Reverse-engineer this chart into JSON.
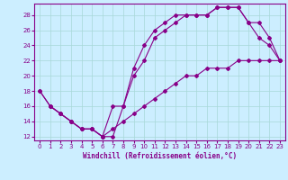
{
  "xlabel": "Windchill (Refroidissement éolien,°C)",
  "bg_color": "#cceeff",
  "line_color": "#880088",
  "xlim": [
    -0.5,
    23.5
  ],
  "ylim": [
    11.5,
    29.5
  ],
  "yticks": [
    12,
    14,
    16,
    18,
    20,
    22,
    24,
    26,
    28
  ],
  "xticks": [
    0,
    1,
    2,
    3,
    4,
    5,
    6,
    7,
    8,
    9,
    10,
    11,
    12,
    13,
    14,
    15,
    16,
    17,
    18,
    19,
    20,
    21,
    22,
    23
  ],
  "series1_x": [
    0,
    1,
    2,
    3,
    4,
    5,
    6,
    7,
    8,
    9,
    10,
    11,
    12,
    13,
    14,
    15,
    16,
    17,
    18,
    19,
    20,
    21,
    22,
    23
  ],
  "series1_y": [
    18,
    16,
    15,
    14,
    13,
    13,
    12,
    12,
    16,
    20,
    22,
    25,
    26,
    27,
    28,
    28,
    28,
    29,
    29,
    29,
    27,
    25,
    24,
    22
  ],
  "series2_x": [
    1,
    2,
    3,
    4,
    5,
    6,
    7,
    8,
    9,
    10,
    11,
    12,
    13,
    14,
    15,
    16,
    17,
    18,
    19,
    20,
    21,
    22,
    23
  ],
  "series2_y": [
    16,
    15,
    14,
    13,
    13,
    12,
    16,
    16,
    21,
    24,
    26,
    27,
    28,
    28,
    28,
    28,
    29,
    29,
    29,
    27,
    27,
    25,
    22
  ],
  "series3_x": [
    0,
    1,
    2,
    3,
    4,
    5,
    6,
    7,
    8,
    9,
    10,
    11,
    12,
    13,
    14,
    15,
    16,
    17,
    18,
    19,
    20,
    21,
    22,
    23
  ],
  "series3_y": [
    18,
    16,
    15,
    14,
    13,
    13,
    12,
    13,
    14,
    15,
    16,
    17,
    18,
    19,
    20,
    20,
    21,
    21,
    21,
    22,
    22,
    22,
    22,
    22
  ],
  "marker": "D",
  "markersize": 2,
  "linewidth": 0.8
}
